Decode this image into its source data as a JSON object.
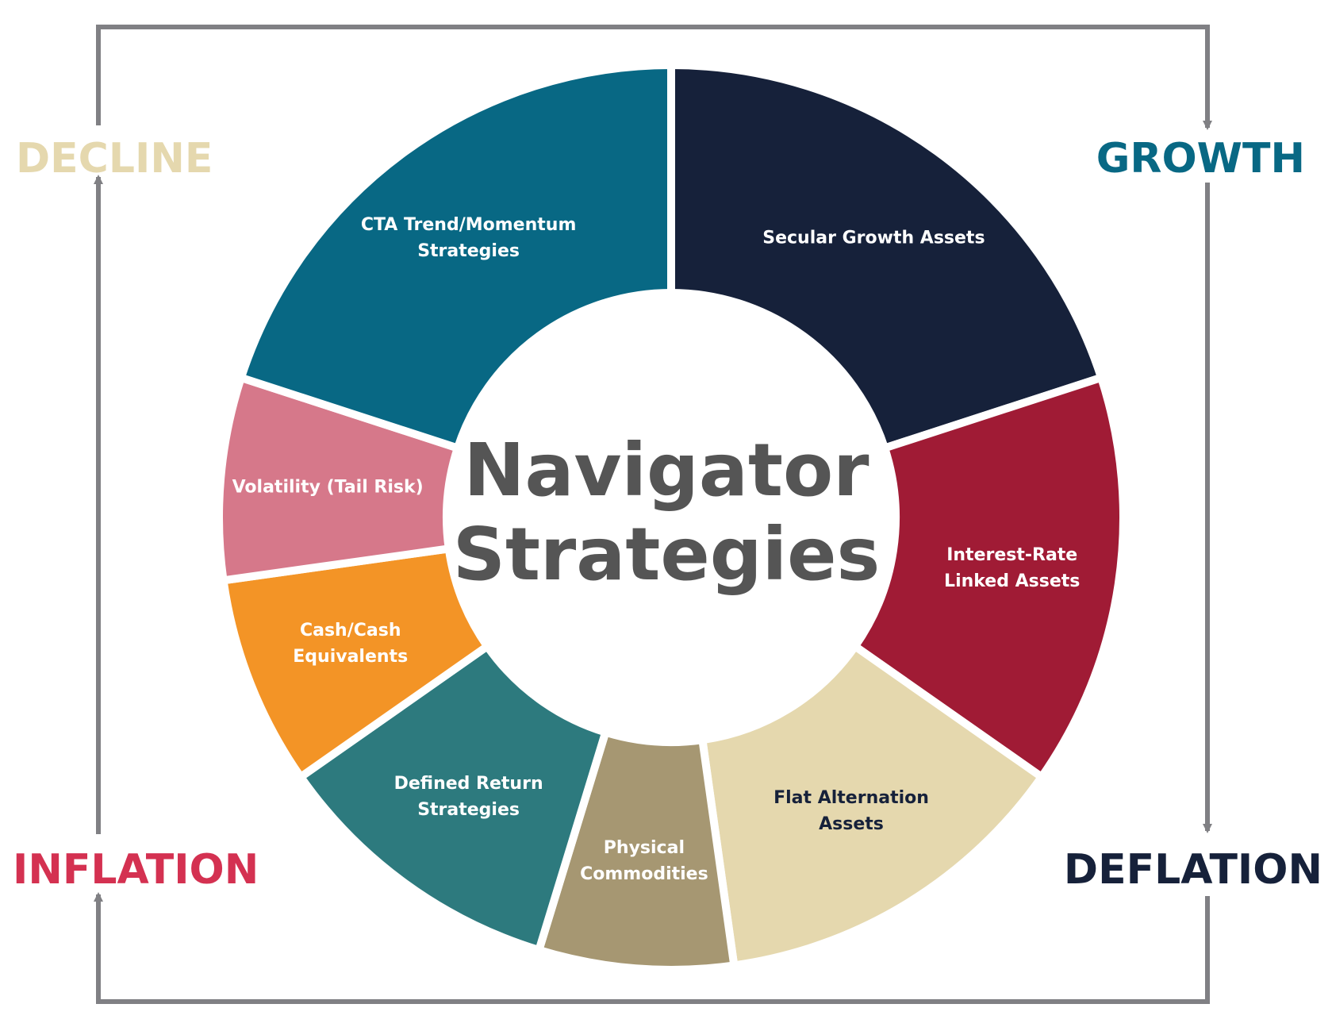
{
  "title": [
    "Navigator",
    "Strategies"
  ],
  "phases": {
    "decline": {
      "label": "DECLINE",
      "color": "#E5D8AE"
    },
    "growth": {
      "label": "GROWTH",
      "color": "#086884"
    },
    "inflation": {
      "label": "INFLATION",
      "color": "#D43151"
    },
    "deflation": {
      "label": "DEFLATION",
      "color": "#16213A"
    }
  },
  "frame_color": "#808084",
  "segments": [
    {
      "id": "secular-growth",
      "lines": [
        "Secular Growth Assets"
      ],
      "color": "#16213A",
      "text_color": "#FFFFFF",
      "start_deg": 0,
      "end_deg": 72
    },
    {
      "id": "interest-rate-linked",
      "lines": [
        "Interest-Rate",
        "Linked Assets"
      ],
      "color": "#A01B35",
      "text_color": "#FFFFFF",
      "start_deg": 72,
      "end_deg": 125
    },
    {
      "id": "flat-alternation",
      "lines": [
        "Flat Alternation",
        "Assets"
      ],
      "color": "#E5D8AE",
      "text_color": "#16213A",
      "start_deg": 125,
      "end_deg": 172
    },
    {
      "id": "physical-commodities",
      "lines": [
        "Physical",
        "Commodities"
      ],
      "color": "#A69772",
      "text_color": "#FFFFFF",
      "start_deg": 172,
      "end_deg": 197
    },
    {
      "id": "defined-return",
      "lines": [
        "Defined Return",
        "Strategies"
      ],
      "color": "#2D7A7E",
      "text_color": "#FFFFFF",
      "start_deg": 197,
      "end_deg": 235
    },
    {
      "id": "cash-equivalents",
      "lines": [
        "Cash/Cash",
        "Equivalents"
      ],
      "color": "#F39426",
      "text_color": "#FFFFFF",
      "start_deg": 235,
      "end_deg": 262
    },
    {
      "id": "volatility-tail-risk",
      "lines": [
        "Volatility (Tail Risk)"
      ],
      "color": "#D6788A",
      "text_color": "#FFFFFF",
      "start_deg": 262,
      "end_deg": 288
    },
    {
      "id": "cta-trend-momentum",
      "lines": [
        "CTA Trend/Momentum",
        "Strategies"
      ],
      "color": "#086884",
      "text_color": "#FFFFFF",
      "start_deg": 288,
      "end_deg": 360
    }
  ]
}
